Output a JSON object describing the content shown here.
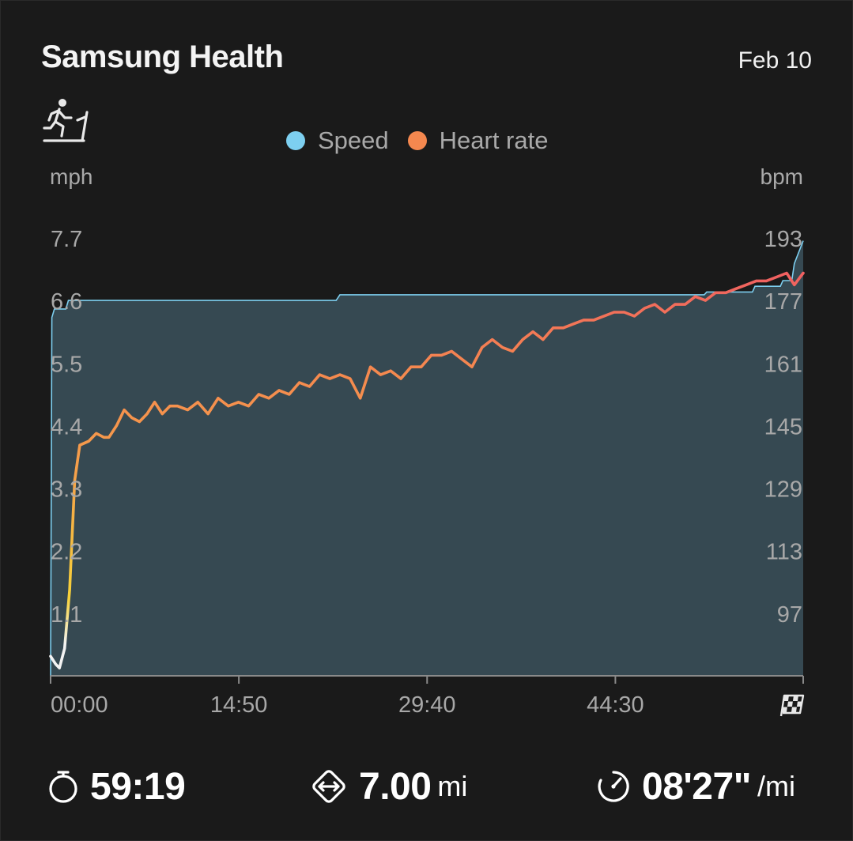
{
  "header": {
    "app_title": "Samsung Health",
    "date": "Feb 10"
  },
  "activity_icon": "treadmill-icon",
  "legend": [
    {
      "label": "Speed",
      "color": "#7dcff0"
    },
    {
      "label": "Heart rate",
      "color": "#f5884f"
    }
  ],
  "chart_data": {
    "type": "line",
    "title": "",
    "left_axis": {
      "unit": "mph",
      "ticks": [
        "7.7",
        "6.6",
        "5.5",
        "4.4",
        "3.3",
        "2.2",
        "1.1"
      ],
      "range": [
        0,
        7.7
      ]
    },
    "right_axis": {
      "unit": "bpm",
      "ticks": [
        "193",
        "177",
        "161",
        "145",
        "129",
        "113",
        "97"
      ],
      "range": [
        81,
        193
      ]
    },
    "x_axis": {
      "ticks": [
        "00:00",
        "14:50",
        "29:40",
        "44:30"
      ],
      "end_icon": "finish-flag-icon",
      "range_minutes": [
        0,
        59.3
      ]
    },
    "series": [
      {
        "name": "Speed",
        "unit": "mph",
        "color": "#7dcff0",
        "fill": "#364952",
        "x": [
          0,
          0.1,
          0.3,
          1.2,
          1.4,
          22.5,
          22.8,
          51.5,
          51.7,
          55.3,
          55.5,
          57.5,
          57.7,
          58.4,
          58.6,
          59.3
        ],
        "values": [
          0,
          6.3,
          6.45,
          6.45,
          6.6,
          6.6,
          6.7,
          6.7,
          6.75,
          6.75,
          6.85,
          6.85,
          6.95,
          6.95,
          7.25,
          7.65
        ]
      },
      {
        "name": "Heart rate",
        "unit": "bpm",
        "x": [
          0,
          0.4,
          0.7,
          1.1,
          1.5,
          1.9,
          2.3,
          3.0,
          3.6,
          4.2,
          4.6,
          5.2,
          5.8,
          6.4,
          7.0,
          7.6,
          8.2,
          8.8,
          9.4,
          10.0,
          10.8,
          11.6,
          12.4,
          13.2,
          14.0,
          14.8,
          15.6,
          16.4,
          17.2,
          18.0,
          18.8,
          19.6,
          20.4,
          21.2,
          22.0,
          22.8,
          23.6,
          24.4,
          25.2,
          26.0,
          26.8,
          27.6,
          28.4,
          29.2,
          30.0,
          30.8,
          31.6,
          32.4,
          33.2,
          34.0,
          34.8,
          35.6,
          36.4,
          37.2,
          38.0,
          38.8,
          39.6,
          40.4,
          41.2,
          42.0,
          42.8,
          43.6,
          44.4,
          45.2,
          46.0,
          46.8,
          47.6,
          48.4,
          49.2,
          50.0,
          50.8,
          51.6,
          52.4,
          53.2,
          54.0,
          54.8,
          55.6,
          56.4,
          57.2,
          58.0,
          58.6,
          59.3
        ],
        "values": [
          86,
          84,
          83,
          88,
          103,
          131,
          140,
          141,
          143,
          142,
          142,
          145,
          149,
          147,
          146,
          148,
          151,
          148,
          150,
          150,
          149,
          151,
          148,
          152,
          150,
          151,
          150,
          153,
          152,
          154,
          153,
          156,
          155,
          158,
          157,
          158,
          157,
          152,
          160,
          158,
          159,
          157,
          160,
          160,
          163,
          163,
          164,
          162,
          160,
          165,
          167,
          165,
          164,
          167,
          169,
          167,
          170,
          170,
          171,
          172,
          172,
          173,
          174,
          174,
          173,
          175,
          176,
          174,
          176,
          176,
          178,
          177,
          179,
          179,
          180,
          181,
          182,
          182,
          183,
          184,
          181,
          184
        ],
        "gradient_colors": [
          "#f3f3f3",
          "#f7d23a",
          "#f5a04a",
          "#f5884f",
          "#ef5a63"
        ]
      }
    ],
    "grid": false
  },
  "footer": {
    "duration": {
      "icon": "stopwatch-icon",
      "value": "59:19"
    },
    "distance": {
      "icon": "distance-icon",
      "value": "7.00",
      "unit": "mi"
    },
    "pace": {
      "icon": "pace-icon",
      "value": "08'27\"",
      "unit": "/mi"
    }
  }
}
